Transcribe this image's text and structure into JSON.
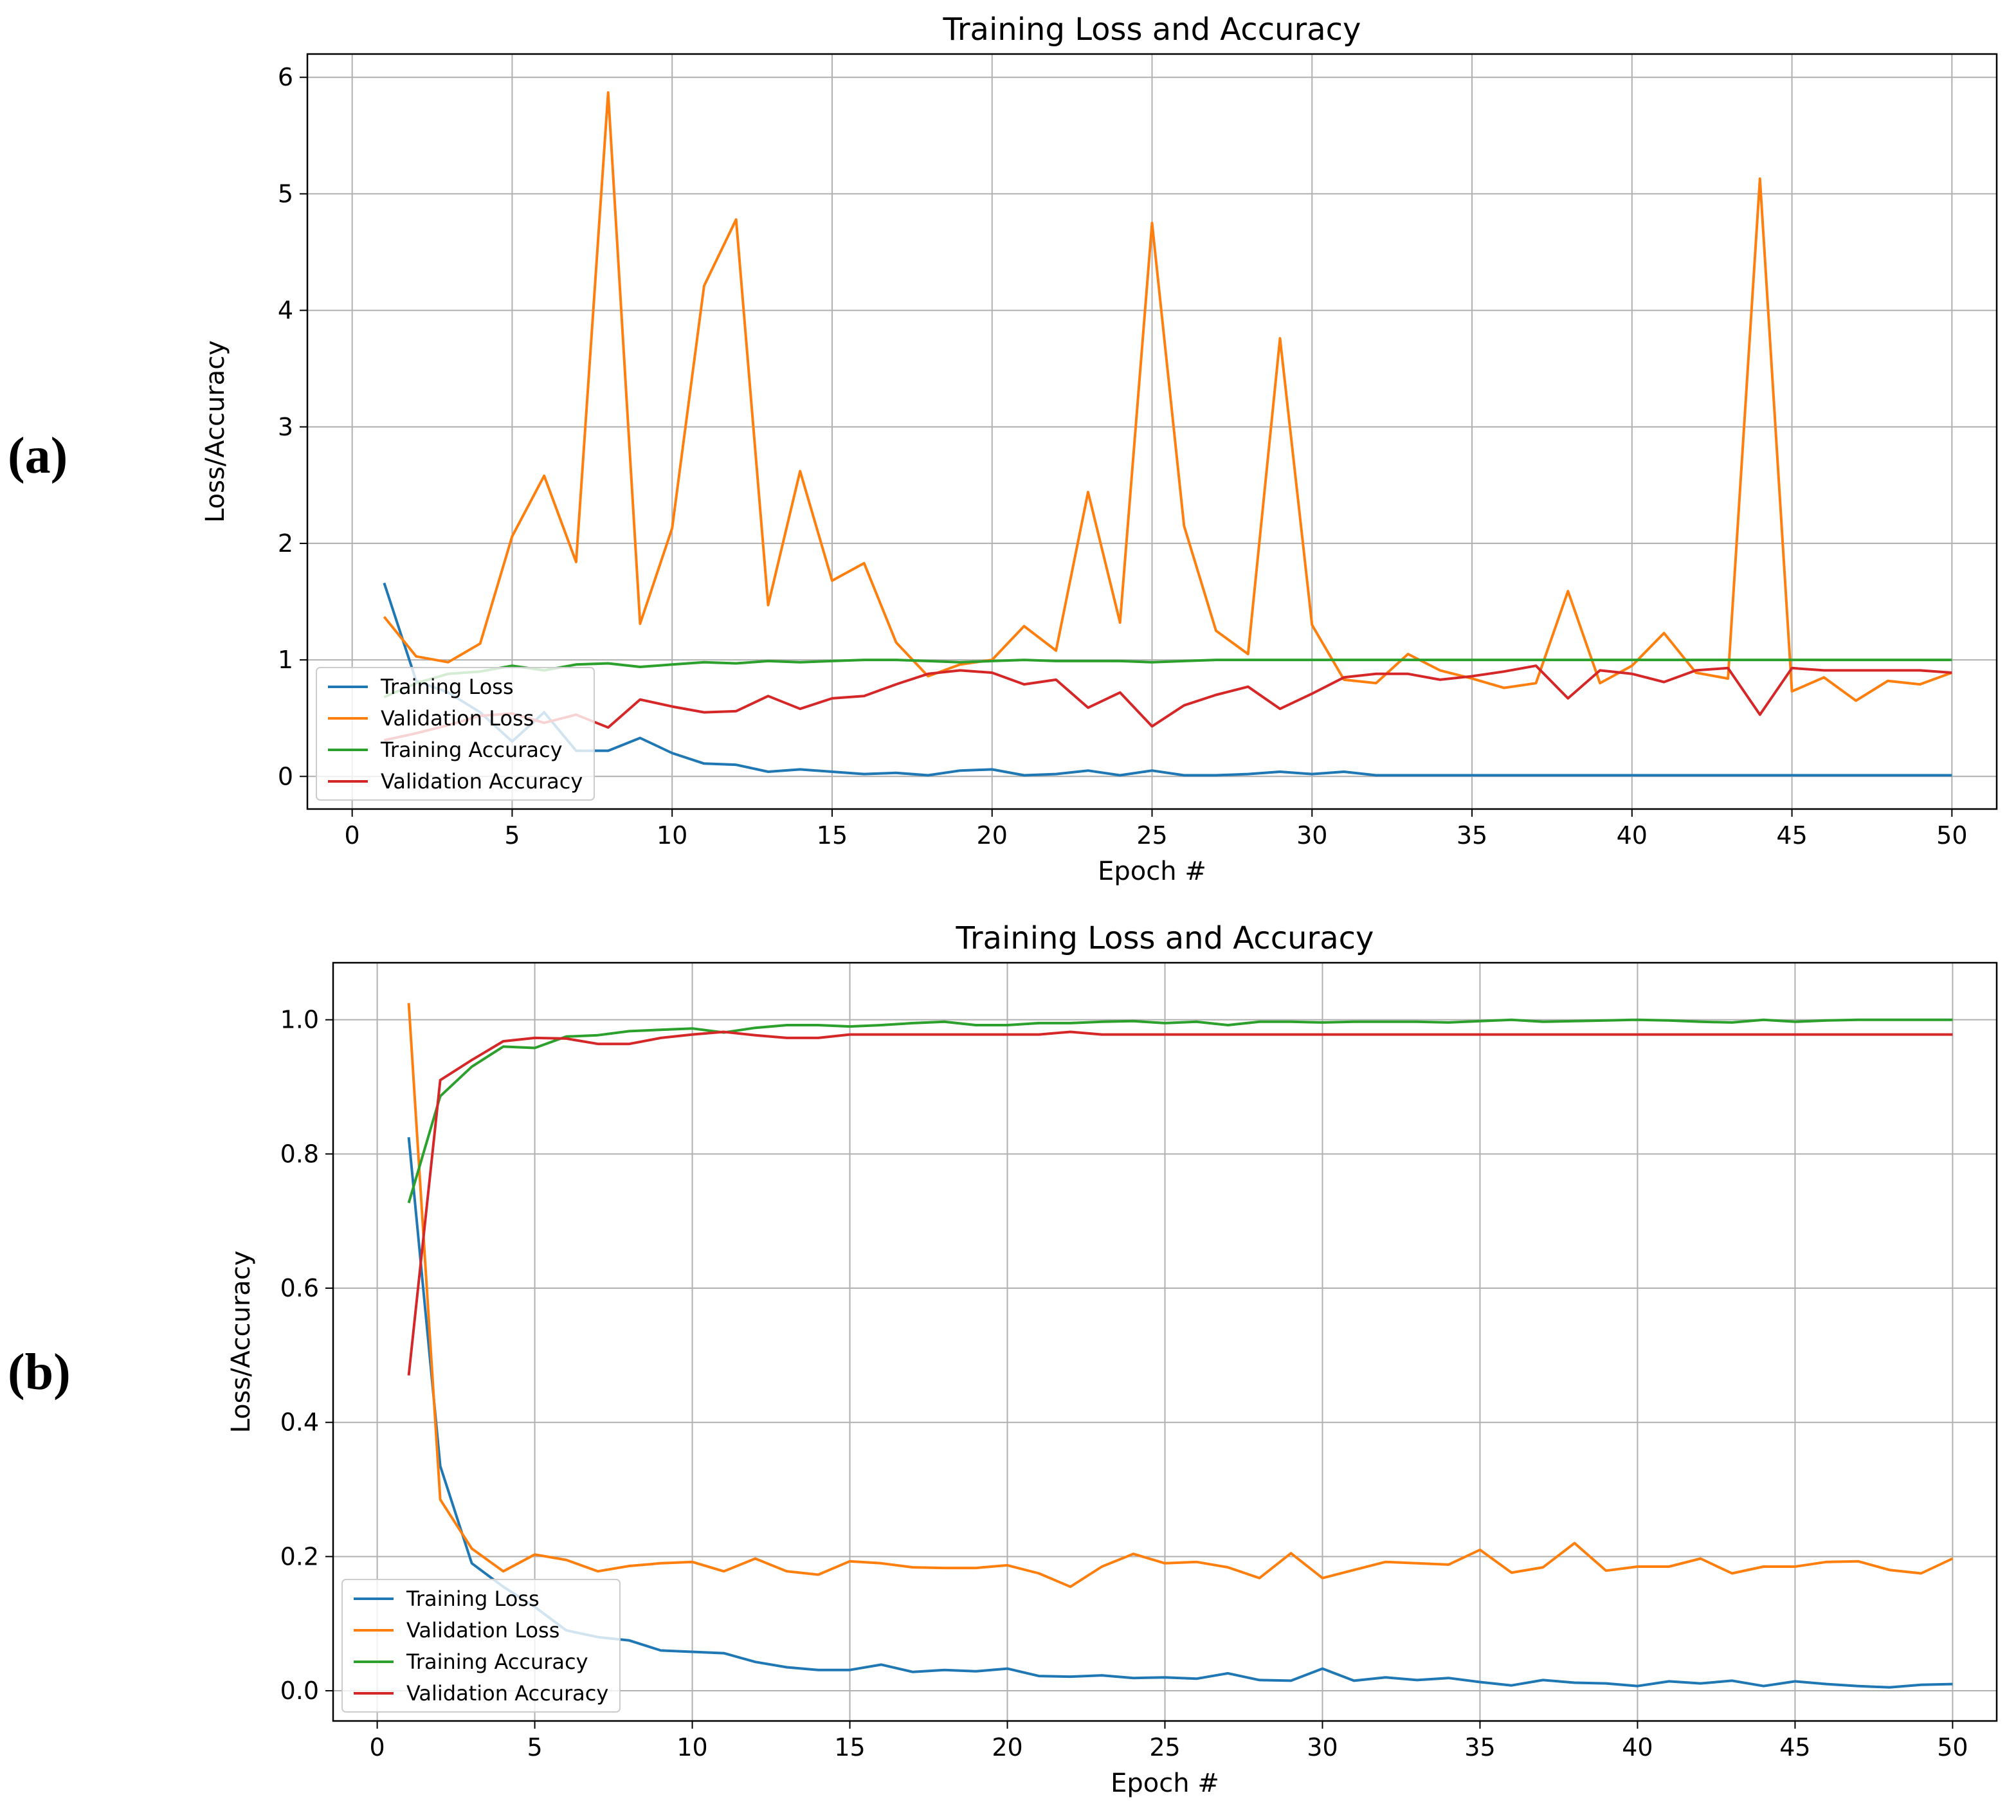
{
  "panel_labels": [
    "(a)",
    "(b)"
  ],
  "colors": {
    "training_loss": "#1f77b4",
    "validation_loss": "#ff7f0e",
    "training_accuracy": "#2ca02c",
    "validation_accuracy": "#d62728"
  },
  "chart_data": [
    {
      "type": "line",
      "title": "Training Loss and Accuracy",
      "xlabel": "Epoch #",
      "ylabel": "Loss/Accuracy",
      "xlim": [
        -1.4,
        51.4
      ],
      "ylim": [
        -0.28,
        6.2
      ],
      "xticks": [
        0,
        5,
        10,
        15,
        20,
        25,
        30,
        35,
        40,
        45,
        50
      ],
      "yticks": [
        0,
        1,
        2,
        3,
        4,
        5,
        6
      ],
      "ytick_labels": [
        "0",
        "1",
        "2",
        "3",
        "4",
        "5",
        "6"
      ],
      "grid": true,
      "legend_position": "lower-left",
      "x": [
        1,
        2,
        3,
        4,
        5,
        6,
        7,
        8,
        9,
        10,
        11,
        12,
        13,
        14,
        15,
        16,
        17,
        18,
        19,
        20,
        21,
        22,
        23,
        24,
        25,
        26,
        27,
        28,
        29,
        30,
        31,
        32,
        33,
        34,
        35,
        36,
        37,
        38,
        39,
        40,
        41,
        42,
        43,
        44,
        45,
        46,
        47,
        48,
        49,
        50
      ],
      "series": [
        {
          "name": "Training Loss",
          "color_key": "training_loss",
          "values": [
            1.66,
            0.82,
            0.72,
            0.55,
            0.3,
            0.55,
            0.22,
            0.22,
            0.33,
            0.2,
            0.11,
            0.1,
            0.04,
            0.06,
            0.04,
            0.02,
            0.03,
            0.01,
            0.05,
            0.06,
            0.01,
            0.02,
            0.05,
            0.01,
            0.05,
            0.01,
            0.01,
            0.02,
            0.04,
            0.02,
            0.04,
            0.01,
            0.01,
            0.01,
            0.01,
            0.01,
            0.01,
            0.01,
            0.01,
            0.01,
            0.01,
            0.01,
            0.01,
            0.01,
            0.01,
            0.01,
            0.01,
            0.01,
            0.01,
            0.01
          ]
        },
        {
          "name": "Validation Loss",
          "color_key": "validation_loss",
          "values": [
            1.37,
            1.03,
            0.98,
            1.14,
            2.06,
            2.58,
            1.84,
            5.87,
            1.31,
            2.13,
            4.21,
            4.78,
            1.47,
            2.62,
            1.68,
            1.83,
            1.15,
            0.86,
            0.96,
            1.0,
            1.29,
            1.08,
            2.44,
            1.32,
            4.75,
            2.15,
            1.25,
            1.05,
            3.76,
            1.3,
            0.83,
            0.8,
            1.05,
            0.91,
            0.84,
            0.76,
            0.8,
            1.59,
            0.8,
            0.95,
            1.23,
            0.89,
            0.84,
            5.13,
            0.73,
            0.85,
            0.65,
            0.82,
            0.79,
            0.89
          ]
        },
        {
          "name": "Training Accuracy",
          "color_key": "training_accuracy",
          "values": [
            0.68,
            0.8,
            0.88,
            0.9,
            0.95,
            0.91,
            0.96,
            0.97,
            0.94,
            0.96,
            0.98,
            0.97,
            0.99,
            0.98,
            0.99,
            1.0,
            1.0,
            0.99,
            0.98,
            0.99,
            1.0,
            0.99,
            0.99,
            0.99,
            0.98,
            0.99,
            1.0,
            1.0,
            1.0,
            1.0,
            1.0,
            1.0,
            1.0,
            1.0,
            1.0,
            1.0,
            1.0,
            1.0,
            1.0,
            1.0,
            1.0,
            1.0,
            1.0,
            1.0,
            1.0,
            1.0,
            1.0,
            1.0,
            1.0,
            1.0
          ]
        },
        {
          "name": "Validation Accuracy",
          "color_key": "validation_accuracy",
          "values": [
            0.31,
            0.37,
            0.44,
            0.52,
            0.54,
            0.46,
            0.53,
            0.42,
            0.66,
            0.6,
            0.55,
            0.56,
            0.69,
            0.58,
            0.67,
            0.69,
            0.79,
            0.88,
            0.91,
            0.89,
            0.79,
            0.83,
            0.59,
            0.72,
            0.43,
            0.61,
            0.7,
            0.77,
            0.58,
            0.71,
            0.85,
            0.88,
            0.88,
            0.83,
            0.86,
            0.9,
            0.95,
            0.67,
            0.91,
            0.88,
            0.81,
            0.91,
            0.93,
            0.53,
            0.93,
            0.91,
            0.91,
            0.91,
            0.91,
            0.89
          ]
        }
      ]
    },
    {
      "type": "line",
      "title": "Training Loss and Accuracy",
      "xlabel": "Epoch #",
      "ylabel": "Loss/Accuracy",
      "xlim": [
        -1.4,
        51.4
      ],
      "ylim": [
        -0.045,
        1.085
      ],
      "xticks": [
        0,
        5,
        10,
        15,
        20,
        25,
        30,
        35,
        40,
        45,
        50
      ],
      "yticks": [
        0,
        0.2,
        0.4,
        0.6,
        0.8,
        1.0
      ],
      "ytick_labels": [
        "0.0",
        "0.2",
        "0.4",
        "0.6",
        "0.8",
        "1.0"
      ],
      "grid": true,
      "legend_position": "lower-left",
      "x": [
        1,
        2,
        3,
        4,
        5,
        6,
        7,
        8,
        9,
        10,
        11,
        12,
        13,
        14,
        15,
        16,
        17,
        18,
        19,
        20,
        21,
        22,
        23,
        24,
        25,
        26,
        27,
        28,
        29,
        30,
        31,
        32,
        33,
        34,
        35,
        36,
        37,
        38,
        39,
        40,
        41,
        42,
        43,
        44,
        45,
        46,
        47,
        48,
        49,
        50
      ],
      "series": [
        {
          "name": "Training Loss",
          "color_key": "training_loss",
          "values": [
            0.825,
            0.335,
            0.19,
            0.155,
            0.125,
            0.09,
            0.08,
            0.075,
            0.06,
            0.058,
            0.056,
            0.043,
            0.035,
            0.031,
            0.031,
            0.039,
            0.028,
            0.031,
            0.029,
            0.033,
            0.022,
            0.021,
            0.023,
            0.019,
            0.02,
            0.018,
            0.026,
            0.016,
            0.015,
            0.033,
            0.015,
            0.02,
            0.016,
            0.019,
            0.013,
            0.008,
            0.016,
            0.012,
            0.011,
            0.007,
            0.014,
            0.011,
            0.015,
            0.007,
            0.014,
            0.01,
            0.007,
            0.005,
            0.009,
            0.01
          ]
        },
        {
          "name": "Validation Loss",
          "color_key": "validation_loss",
          "values": [
            1.025,
            0.285,
            0.212,
            0.178,
            0.203,
            0.195,
            0.178,
            0.186,
            0.19,
            0.192,
            0.178,
            0.197,
            0.178,
            0.173,
            0.193,
            0.19,
            0.184,
            0.183,
            0.183,
            0.187,
            0.175,
            0.155,
            0.185,
            0.204,
            0.19,
            0.192,
            0.184,
            0.168,
            0.205,
            0.168,
            0.18,
            0.192,
            0.19,
            0.188,
            0.21,
            0.176,
            0.184,
            0.22,
            0.179,
            0.185,
            0.185,
            0.197,
            0.175,
            0.185,
            0.185,
            0.192,
            0.193,
            0.18,
            0.175,
            0.197
          ]
        },
        {
          "name": "Training Accuracy",
          "color_key": "training_accuracy",
          "values": [
            0.727,
            0.886,
            0.93,
            0.96,
            0.958,
            0.975,
            0.977,
            0.983,
            0.985,
            0.987,
            0.981,
            0.988,
            0.992,
            0.992,
            0.99,
            0.992,
            0.995,
            0.997,
            0.992,
            0.992,
            0.995,
            0.995,
            0.997,
            0.998,
            0.995,
            0.997,
            0.992,
            0.997,
            0.997,
            0.996,
            0.997,
            0.997,
            0.997,
            0.996,
            0.998,
            1.0,
            0.997,
            0.998,
            0.999,
            1.0,
            0.999,
            0.997,
            0.996,
            1.0,
            0.997,
            0.999,
            1.0,
            1.0,
            1.0,
            1.0
          ]
        },
        {
          "name": "Validation Accuracy",
          "color_key": "validation_accuracy",
          "values": [
            0.47,
            0.91,
            0.94,
            0.968,
            0.973,
            0.972,
            0.964,
            0.964,
            0.973,
            0.978,
            0.982,
            0.977,
            0.973,
            0.973,
            0.978,
            0.978,
            0.978,
            0.978,
            0.978,
            0.978,
            0.978,
            0.982,
            0.978,
            0.978,
            0.978,
            0.978,
            0.978,
            0.978,
            0.978,
            0.978,
            0.978,
            0.978,
            0.978,
            0.978,
            0.978,
            0.978,
            0.978,
            0.978,
            0.978,
            0.978,
            0.978,
            0.978,
            0.978,
            0.978,
            0.978,
            0.978,
            0.978,
            0.978,
            0.978,
            0.978
          ]
        }
      ]
    }
  ]
}
